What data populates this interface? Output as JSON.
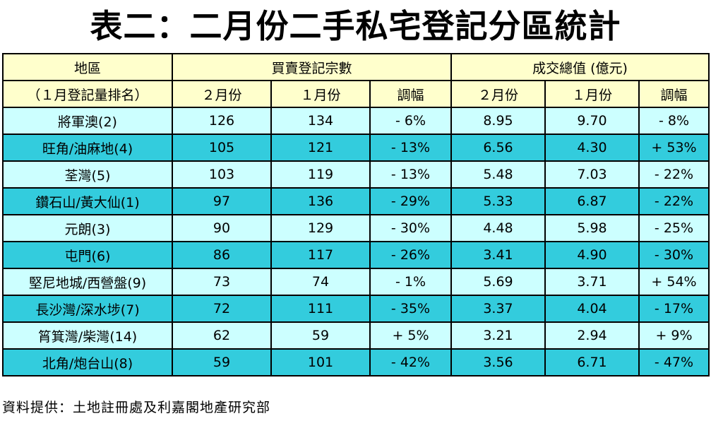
{
  "title": "表二：二月份二手私宅登記分區統計",
  "header": {
    "district": "地區",
    "district_sub": "（１月登記量排名）",
    "transactions": "買賣登記宗數",
    "value": "成交總值 (億元)",
    "feb": "２月份",
    "jan": "１月份",
    "change": "調幅"
  },
  "rows": [
    {
      "district": "將軍澳(2)",
      "tx_feb": "126",
      "tx_jan": "134",
      "tx_change": "- 6%",
      "val_feb": "8.95",
      "val_jan": "9.70",
      "val_change": "- 8%"
    },
    {
      "district": "旺角/油麻地(4)",
      "tx_feb": "105",
      "tx_jan": "121",
      "tx_change": "- 13%",
      "val_feb": "6.56",
      "val_jan": "4.30",
      "val_change": "+ 53%"
    },
    {
      "district": "荃灣(5)",
      "tx_feb": "103",
      "tx_jan": "119",
      "tx_change": "- 13%",
      "val_feb": "5.48",
      "val_jan": "7.03",
      "val_change": "- 22%"
    },
    {
      "district": "鑽石山/黃大仙(1)",
      "tx_feb": "97",
      "tx_jan": "136",
      "tx_change": "- 29%",
      "val_feb": "5.33",
      "val_jan": "6.87",
      "val_change": "- 22%"
    },
    {
      "district": "元朗(3)",
      "tx_feb": "90",
      "tx_jan": "129",
      "tx_change": "- 30%",
      "val_feb": "4.48",
      "val_jan": "5.98",
      "val_change": "- 25%"
    },
    {
      "district": "屯門(6)",
      "tx_feb": "86",
      "tx_jan": "117",
      "tx_change": "- 26%",
      "val_feb": "3.41",
      "val_jan": "4.90",
      "val_change": "- 30%"
    },
    {
      "district": "堅尼地城/西營盤(9)",
      "tx_feb": "73",
      "tx_jan": "74",
      "tx_change": "- 1%",
      "val_feb": "5.69",
      "val_jan": "3.71",
      "val_change": "+ 54%"
    },
    {
      "district": "長沙灣/深水埗(7)",
      "tx_feb": "72",
      "tx_jan": "111",
      "tx_change": "- 35%",
      "val_feb": "3.37",
      "val_jan": "4.04",
      "val_change": "- 17%"
    },
    {
      "district": "筲箕灣/柴灣(14)",
      "tx_feb": "62",
      "tx_jan": "59",
      "tx_change": "+ 5%",
      "val_feb": "3.21",
      "val_jan": "2.94",
      "val_change": "+ 9%"
    },
    {
      "district": "北角/炮台山(8)",
      "tx_feb": "59",
      "tx_jan": "101",
      "tx_change": "- 42%",
      "val_feb": "3.56",
      "val_jan": "6.71",
      "val_change": "- 47%"
    }
  ],
  "source": "資料提供：土地註冊處及利嘉閣地產研究部",
  "colors": {
    "header_bg": "#ffffcc",
    "row_light": "#ccffff",
    "row_dark": "#33ccdd"
  }
}
